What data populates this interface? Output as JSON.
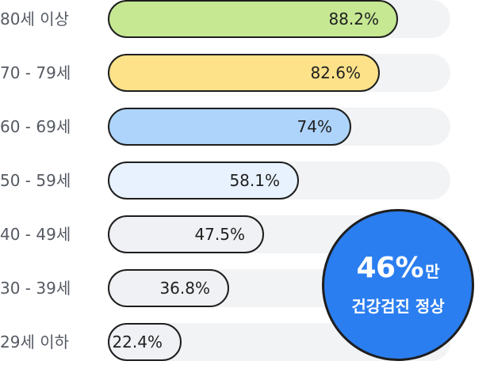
{
  "chart_data": {
    "type": "bar",
    "orientation": "horizontal",
    "categories": [
      "80세 이상",
      "70 - 79세",
      "60 - 69세",
      "50 - 59세",
      "40 - 49세",
      "30 - 39세",
      "29세 이하"
    ],
    "values": [
      88.2,
      82.6,
      74,
      58.1,
      47.5,
      36.8,
      22.4
    ],
    "value_labels": [
      "88.2%",
      "82.6%",
      "74%",
      "58.1%",
      "47.5%",
      "36.8%",
      "22.4%"
    ],
    "unit": "%",
    "xlim": [
      0,
      100
    ],
    "grid": false,
    "legend": "none",
    "bar_colors": [
      "#c6e893",
      "#fde28a",
      "#aed4fb",
      "#e8f2fe",
      "#f0f1f4",
      "#f0f1f4",
      "#f0f1f4"
    ],
    "track_color": "#f2f3f5",
    "outline_color": "#1e1e1e"
  },
  "badge": {
    "percent": "46%",
    "suffix": "만",
    "caption": "건강검진 정상",
    "color": "#2b7ef0"
  }
}
